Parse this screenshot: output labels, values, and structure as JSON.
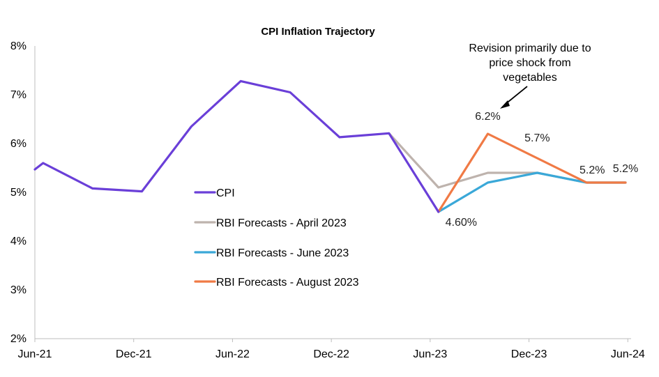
{
  "chart_data": {
    "type": "line",
    "title": "CPI  Inflation Trajectory",
    "xlabel": "",
    "ylabel": "",
    "ylim": [
      2,
      8
    ],
    "y_ticks": [
      "2%",
      "3%",
      "4%",
      "5%",
      "6%",
      "7%",
      "8%"
    ],
    "x_ticks": [
      "Jun-21",
      "Dec-21",
      "Jun-22",
      "Dec-22",
      "Jun-23",
      "Dec-23",
      "Jun-24"
    ],
    "x_tick_index": [
      0,
      6,
      12,
      18,
      24,
      30,
      36
    ],
    "x_range": [
      0,
      36.2
    ],
    "grid": false,
    "legend_position": "center-left",
    "series": [
      {
        "name": "CPI",
        "color": "#6a3fd8",
        "points": [
          [
            0,
            5.47
          ],
          [
            0.5,
            5.6
          ],
          [
            3.5,
            5.08
          ],
          [
            6.5,
            5.02
          ],
          [
            9.5,
            6.35
          ],
          [
            12.5,
            7.28
          ],
          [
            15.5,
            7.05
          ],
          [
            18.5,
            6.13
          ],
          [
            21.5,
            6.21
          ],
          [
            24.5,
            4.6
          ]
        ]
      },
      {
        "name": "RBI Forecasts - April 2023",
        "color": "#beb3ad",
        "points": [
          [
            21.5,
            6.21
          ],
          [
            24.5,
            5.1
          ],
          [
            27.5,
            5.4
          ],
          [
            30.5,
            5.4
          ],
          [
            33.5,
            5.2
          ],
          [
            36.5,
            5.2
          ]
        ]
      },
      {
        "name": "RBI Forecasts - June 2023",
        "color": "#3aa8d8",
        "points": [
          [
            24.5,
            4.6
          ],
          [
            27.5,
            5.2
          ],
          [
            30.5,
            5.4
          ],
          [
            33.5,
            5.2
          ],
          [
            36.5,
            5.2
          ]
        ]
      },
      {
        "name": "RBI Forecasts - August 2023",
        "color": "#f07a45",
        "points": [
          [
            24.5,
            4.6
          ],
          [
            27.5,
            6.2
          ],
          [
            30.5,
            5.7
          ],
          [
            33.5,
            5.2
          ],
          [
            36.5,
            5.2
          ]
        ]
      }
    ],
    "data_labels": [
      {
        "text": "4.60%",
        "x": 24.5,
        "y": 4.6
      },
      {
        "text": "6.2%",
        "x": 27.5,
        "y": 6.2
      },
      {
        "text": "5.7%",
        "x": 30.5,
        "y": 5.7
      },
      {
        "text": "5.2%",
        "x": 33.5,
        "y": 5.2
      },
      {
        "text": "5.2%",
        "x": 36.5,
        "y": 5.2
      }
    ],
    "annotation": {
      "lines": [
        "Revision primarily due to",
        "price shock from",
        "vegetables"
      ]
    }
  }
}
